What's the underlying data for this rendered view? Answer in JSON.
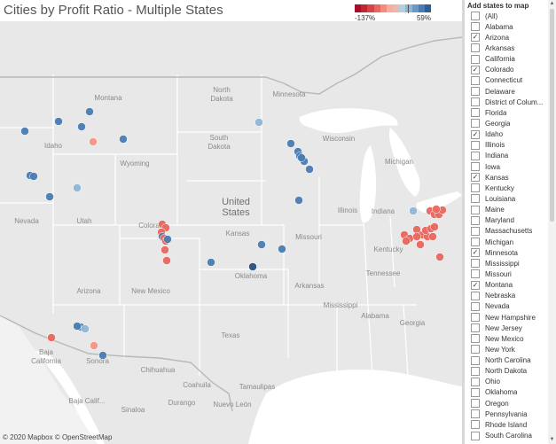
{
  "header": {
    "title": "Cities by Profit Ratio - Multiple States"
  },
  "legend": {
    "min_label": "-137%",
    "max_label": "59%",
    "colors": [
      "#a50f2d",
      "#c1272d",
      "#d7434b",
      "#e8675e",
      "#f48b80",
      "#f8ad9f",
      "#e9b9b1",
      "#b7cde0",
      "#8fb5d6",
      "#6c98c5",
      "#4a7cb2",
      "#2c5f96"
    ]
  },
  "map": {
    "colors": {
      "land": "#e8e8e8",
      "water": "#ffffff",
      "border": "#ffffff",
      "point_negative": "#e8675e",
      "point_positive": "#4a7cb2"
    },
    "labels": {
      "north_dakota": "North\nDakota",
      "minnesota": "Minnesota",
      "montana": "Montana",
      "south_dakota": "South\nDakota",
      "wisconsin": "Wisconsin",
      "michigan": "Michigan",
      "idaho": "Idaho",
      "wyoming": "Wyoming",
      "united_states": "United\nStates",
      "nevada": "Nevada",
      "utah": "Utah",
      "colorado": "Colora",
      "kansas": "Kansas",
      "missouri": "Missouri",
      "illinois": "Illinois",
      "indiana": "Indiana",
      "kentucky": "Kentucky",
      "tennessee": "Tennessee",
      "oklahoma": "Oklahoma",
      "arkansas": "Arkansas",
      "mississippi": "Mississippi",
      "alabama": "Alabama",
      "georgia": "Georgia",
      "arizona": "Arizona",
      "new_mexico": "New Mexico",
      "texas": "Texas",
      "sonora": "Sonora",
      "baja_california": "Baja\nCalifornia",
      "chihuahua": "Chihuahua",
      "coahuila": "Coahuila",
      "durango": "Durango",
      "baja_california_sur": "Baja Calif...",
      "nuevo_leon": "Nuevo León",
      "tamaulipas": "Tamaulipas",
      "sinaloa": "Sinaloa"
    },
    "attribution": "© 2020 Mapbox © OpenStreetMap"
  },
  "filter": {
    "title": "Add states to map",
    "items": [
      {
        "label": "(All)",
        "checked": false
      },
      {
        "label": "Alabama",
        "checked": false
      },
      {
        "label": "Arizona",
        "checked": true
      },
      {
        "label": "Arkansas",
        "checked": false
      },
      {
        "label": "California",
        "checked": false
      },
      {
        "label": "Colorado",
        "checked": true
      },
      {
        "label": "Connecticut",
        "checked": false
      },
      {
        "label": "Delaware",
        "checked": false
      },
      {
        "label": "District of Colum...",
        "checked": false
      },
      {
        "label": "Florida",
        "checked": false
      },
      {
        "label": "Georgia",
        "checked": false
      },
      {
        "label": "Idaho",
        "checked": true
      },
      {
        "label": "Illinois",
        "checked": false
      },
      {
        "label": "Indiana",
        "checked": false
      },
      {
        "label": "Iowa",
        "checked": false
      },
      {
        "label": "Kansas",
        "checked": true
      },
      {
        "label": "Kentucky",
        "checked": false
      },
      {
        "label": "Louisiana",
        "checked": false
      },
      {
        "label": "Maine",
        "checked": false
      },
      {
        "label": "Maryland",
        "checked": false
      },
      {
        "label": "Massachusetts",
        "checked": false
      },
      {
        "label": "Michigan",
        "checked": false
      },
      {
        "label": "Minnesota",
        "checked": true
      },
      {
        "label": "Mississippi",
        "checked": false
      },
      {
        "label": "Missouri",
        "checked": false
      },
      {
        "label": "Montana",
        "checked": true
      },
      {
        "label": "Nebraska",
        "checked": false
      },
      {
        "label": "Nevada",
        "checked": false
      },
      {
        "label": "New Hampshire",
        "checked": false
      },
      {
        "label": "New Jersey",
        "checked": false
      },
      {
        "label": "New Mexico",
        "checked": false
      },
      {
        "label": "New York",
        "checked": false
      },
      {
        "label": "North Carolina",
        "checked": false
      },
      {
        "label": "North Dakota",
        "checked": false
      },
      {
        "label": "Ohio",
        "checked": false
      },
      {
        "label": "Oklahoma",
        "checked": false
      },
      {
        "label": "Oregon",
        "checked": false
      },
      {
        "label": "Pennsylvania",
        "checked": false
      },
      {
        "label": "Rhode Island",
        "checked": false
      },
      {
        "label": "South Carolina",
        "checked": false
      }
    ]
  }
}
